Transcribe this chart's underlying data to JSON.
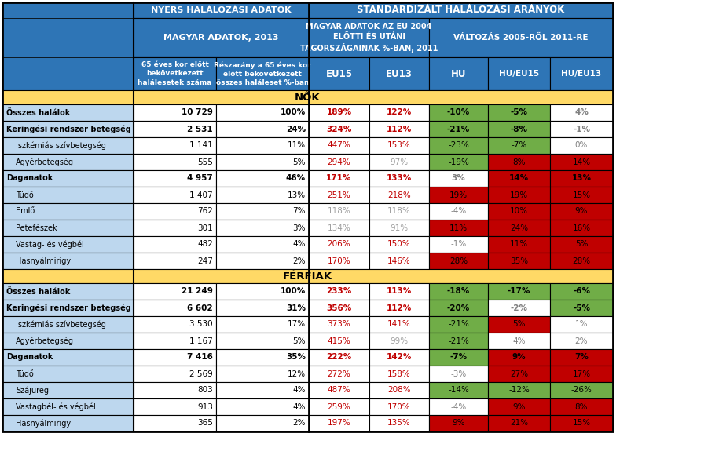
{
  "header_bg": "#2E75B6",
  "nok_bg": "#ffd966",
  "row_bg_light": "#BDD7EE",
  "rows_nok": [
    {
      "label": "Összes halálok",
      "bold": true,
      "indent": false,
      "col1": "10 729",
      "col2": "100%",
      "col3": "189%",
      "col4": "122%",
      "col5": "-10%",
      "col6": "-5%",
      "col7": "4%",
      "col3_red": true,
      "col4_red": true,
      "col5_bg": "#70ad47",
      "col6_bg": "#70ad47",
      "col7_bg": "white",
      "col7_gray": true
    },
    {
      "label": "Keringési rendszer betegség",
      "bold": true,
      "indent": false,
      "col1": "2 531",
      "col2": "24%",
      "col3": "324%",
      "col4": "112%",
      "col5": "-21%",
      "col6": "-8%",
      "col7": "-1%",
      "col3_red": true,
      "col4_red": true,
      "col5_bg": "#70ad47",
      "col6_bg": "#70ad47",
      "col7_bg": "white",
      "col7_gray": true
    },
    {
      "label": "Iszkémiás szívbetegség",
      "bold": false,
      "indent": true,
      "col1": "1 141",
      "col2": "11%",
      "col3": "447%",
      "col4": "153%",
      "col5": "-23%",
      "col6": "-7%",
      "col7": "0%",
      "col3_red": true,
      "col4_red": true,
      "col5_bg": "#70ad47",
      "col6_bg": "#70ad47",
      "col7_bg": "white",
      "col7_gray": true
    },
    {
      "label": "Agyérbetegség",
      "bold": false,
      "indent": true,
      "col1": "555",
      "col2": "5%",
      "col3": "294%",
      "col4": "97%",
      "col5": "-19%",
      "col6": "8%",
      "col7": "14%",
      "col3_red": true,
      "col4_red": false,
      "col5_bg": "#70ad47",
      "col6_bg": "#c00000",
      "col7_bg": "#c00000",
      "col7_gray": false
    },
    {
      "label": "Daganatok",
      "bold": true,
      "indent": false,
      "col1": "4 957",
      "col2": "46%",
      "col3": "171%",
      "col4": "133%",
      "col5": "3%",
      "col6": "14%",
      "col7": "13%",
      "col3_red": true,
      "col4_red": true,
      "col5_bg": "white",
      "col6_bg": "#c00000",
      "col7_bg": "#c00000",
      "col5_gray": true,
      "col7_gray": false
    },
    {
      "label": "Tüdő",
      "bold": false,
      "indent": true,
      "col1": "1 407",
      "col2": "13%",
      "col3": "251%",
      "col4": "218%",
      "col5": "19%",
      "col6": "19%",
      "col7": "15%",
      "col3_red": true,
      "col4_red": true,
      "col5_bg": "#c00000",
      "col6_bg": "#c00000",
      "col7_bg": "#c00000",
      "col7_gray": false
    },
    {
      "label": "Emlő",
      "bold": false,
      "indent": true,
      "col1": "762",
      "col2": "7%",
      "col3": "118%",
      "col4": "118%",
      "col5": "-4%",
      "col6": "10%",
      "col7": "9%",
      "col3_red": false,
      "col4_red": false,
      "col5_bg": "white",
      "col6_bg": "#c00000",
      "col7_bg": "#c00000",
      "col5_gray": true,
      "col7_gray": false
    },
    {
      "label": "Petefészek",
      "bold": false,
      "indent": true,
      "col1": "301",
      "col2": "3%",
      "col3": "134%",
      "col4": "91%",
      "col5": "11%",
      "col6": "24%",
      "col7": "16%",
      "col3_red": false,
      "col4_red": false,
      "col5_bg": "#c00000",
      "col6_bg": "#c00000",
      "col7_bg": "#c00000",
      "col7_gray": false
    },
    {
      "label": "Vastag- és végbél",
      "bold": false,
      "indent": true,
      "col1": "482",
      "col2": "4%",
      "col3": "206%",
      "col4": "150%",
      "col5": "-1%",
      "col6": "11%",
      "col7": "5%",
      "col3_red": true,
      "col4_red": true,
      "col5_bg": "white",
      "col6_bg": "#c00000",
      "col7_bg": "#c00000",
      "col5_gray": true,
      "col7_gray": false
    },
    {
      "label": "Hasnyálmirigy",
      "bold": false,
      "indent": true,
      "col1": "247",
      "col2": "2%",
      "col3": "170%",
      "col4": "146%",
      "col5": "28%",
      "col6": "35%",
      "col7": "28%",
      "col3_red": true,
      "col4_red": true,
      "col5_bg": "#c00000",
      "col6_bg": "#c00000",
      "col7_bg": "#c00000",
      "col7_gray": false
    }
  ],
  "rows_ferfiak": [
    {
      "label": "Összes halálok",
      "bold": true,
      "indent": false,
      "col1": "21 249",
      "col2": "100%",
      "col3": "233%",
      "col4": "113%",
      "col5": "-18%",
      "col6": "-17%",
      "col7": "-6%",
      "col3_red": true,
      "col4_red": true,
      "col5_bg": "#70ad47",
      "col6_bg": "#70ad47",
      "col7_bg": "#70ad47",
      "col7_gray": false
    },
    {
      "label": "Keringési rendszer betegség",
      "bold": true,
      "indent": false,
      "col1": "6 602",
      "col2": "31%",
      "col3": "356%",
      "col4": "112%",
      "col5": "-20%",
      "col6": "-2%",
      "col7": "-5%",
      "col3_red": true,
      "col4_red": true,
      "col5_bg": "#70ad47",
      "col6_bg": "white",
      "col7_bg": "#70ad47",
      "col6_gray": true,
      "col7_gray": false
    },
    {
      "label": "Iszkémiás szívbetegség",
      "bold": false,
      "indent": true,
      "col1": "3 530",
      "col2": "17%",
      "col3": "373%",
      "col4": "141%",
      "col5": "-21%",
      "col6": "5%",
      "col7": "1%",
      "col3_red": true,
      "col4_red": true,
      "col5_bg": "#70ad47",
      "col6_bg": "#c00000",
      "col7_bg": "white",
      "col7_gray": true
    },
    {
      "label": "Agyérbetegség",
      "bold": false,
      "indent": true,
      "col1": "1 167",
      "col2": "5%",
      "col3": "415%",
      "col4": "99%",
      "col5": "-21%",
      "col6": "4%",
      "col7": "2%",
      "col3_red": true,
      "col4_red": false,
      "col5_bg": "#70ad47",
      "col6_bg": "white",
      "col7_bg": "white",
      "col6_gray": true,
      "col7_gray": true
    },
    {
      "label": "Daganatok",
      "bold": true,
      "indent": false,
      "col1": "7 416",
      "col2": "35%",
      "col3": "222%",
      "col4": "142%",
      "col5": "-7%",
      "col6": "9%",
      "col7": "7%",
      "col3_red": true,
      "col4_red": true,
      "col5_bg": "#70ad47",
      "col6_bg": "#c00000",
      "col7_bg": "#c00000",
      "col7_gray": false
    },
    {
      "label": "Tüdő",
      "bold": false,
      "indent": true,
      "col1": "2 569",
      "col2": "12%",
      "col3": "272%",
      "col4": "158%",
      "col5": "-3%",
      "col6": "27%",
      "col7": "17%",
      "col3_red": true,
      "col4_red": true,
      "col5_bg": "white",
      "col6_bg": "#c00000",
      "col7_bg": "#c00000",
      "col5_gray": true,
      "col7_gray": false
    },
    {
      "label": "Szájüreg",
      "bold": false,
      "indent": true,
      "col1": "803",
      "col2": "4%",
      "col3": "487%",
      "col4": "208%",
      "col5": "-14%",
      "col6": "-12%",
      "col7": "-26%",
      "col3_red": true,
      "col4_red": true,
      "col5_bg": "#70ad47",
      "col6_bg": "#70ad47",
      "col7_bg": "#70ad47",
      "col7_gray": false
    },
    {
      "label": "Vastagbél- és végbél",
      "bold": false,
      "indent": true,
      "col1": "913",
      "col2": "4%",
      "col3": "259%",
      "col4": "170%",
      "col5": "-4%",
      "col6": "9%",
      "col7": "8%",
      "col3_red": true,
      "col4_red": true,
      "col5_bg": "white",
      "col6_bg": "#c00000",
      "col7_bg": "#c00000",
      "col5_gray": true,
      "col7_gray": false
    },
    {
      "label": "Hasnyálmirigy",
      "bold": false,
      "indent": true,
      "col1": "365",
      "col2": "2%",
      "col3": "197%",
      "col4": "135%",
      "col5": "9%",
      "col6": "21%",
      "col7": "15%",
      "col3_red": true,
      "col4_red": true,
      "col5_bg": "#c00000",
      "col6_bg": "#c00000",
      "col7_bg": "#c00000",
      "col7_gray": false
    }
  ]
}
